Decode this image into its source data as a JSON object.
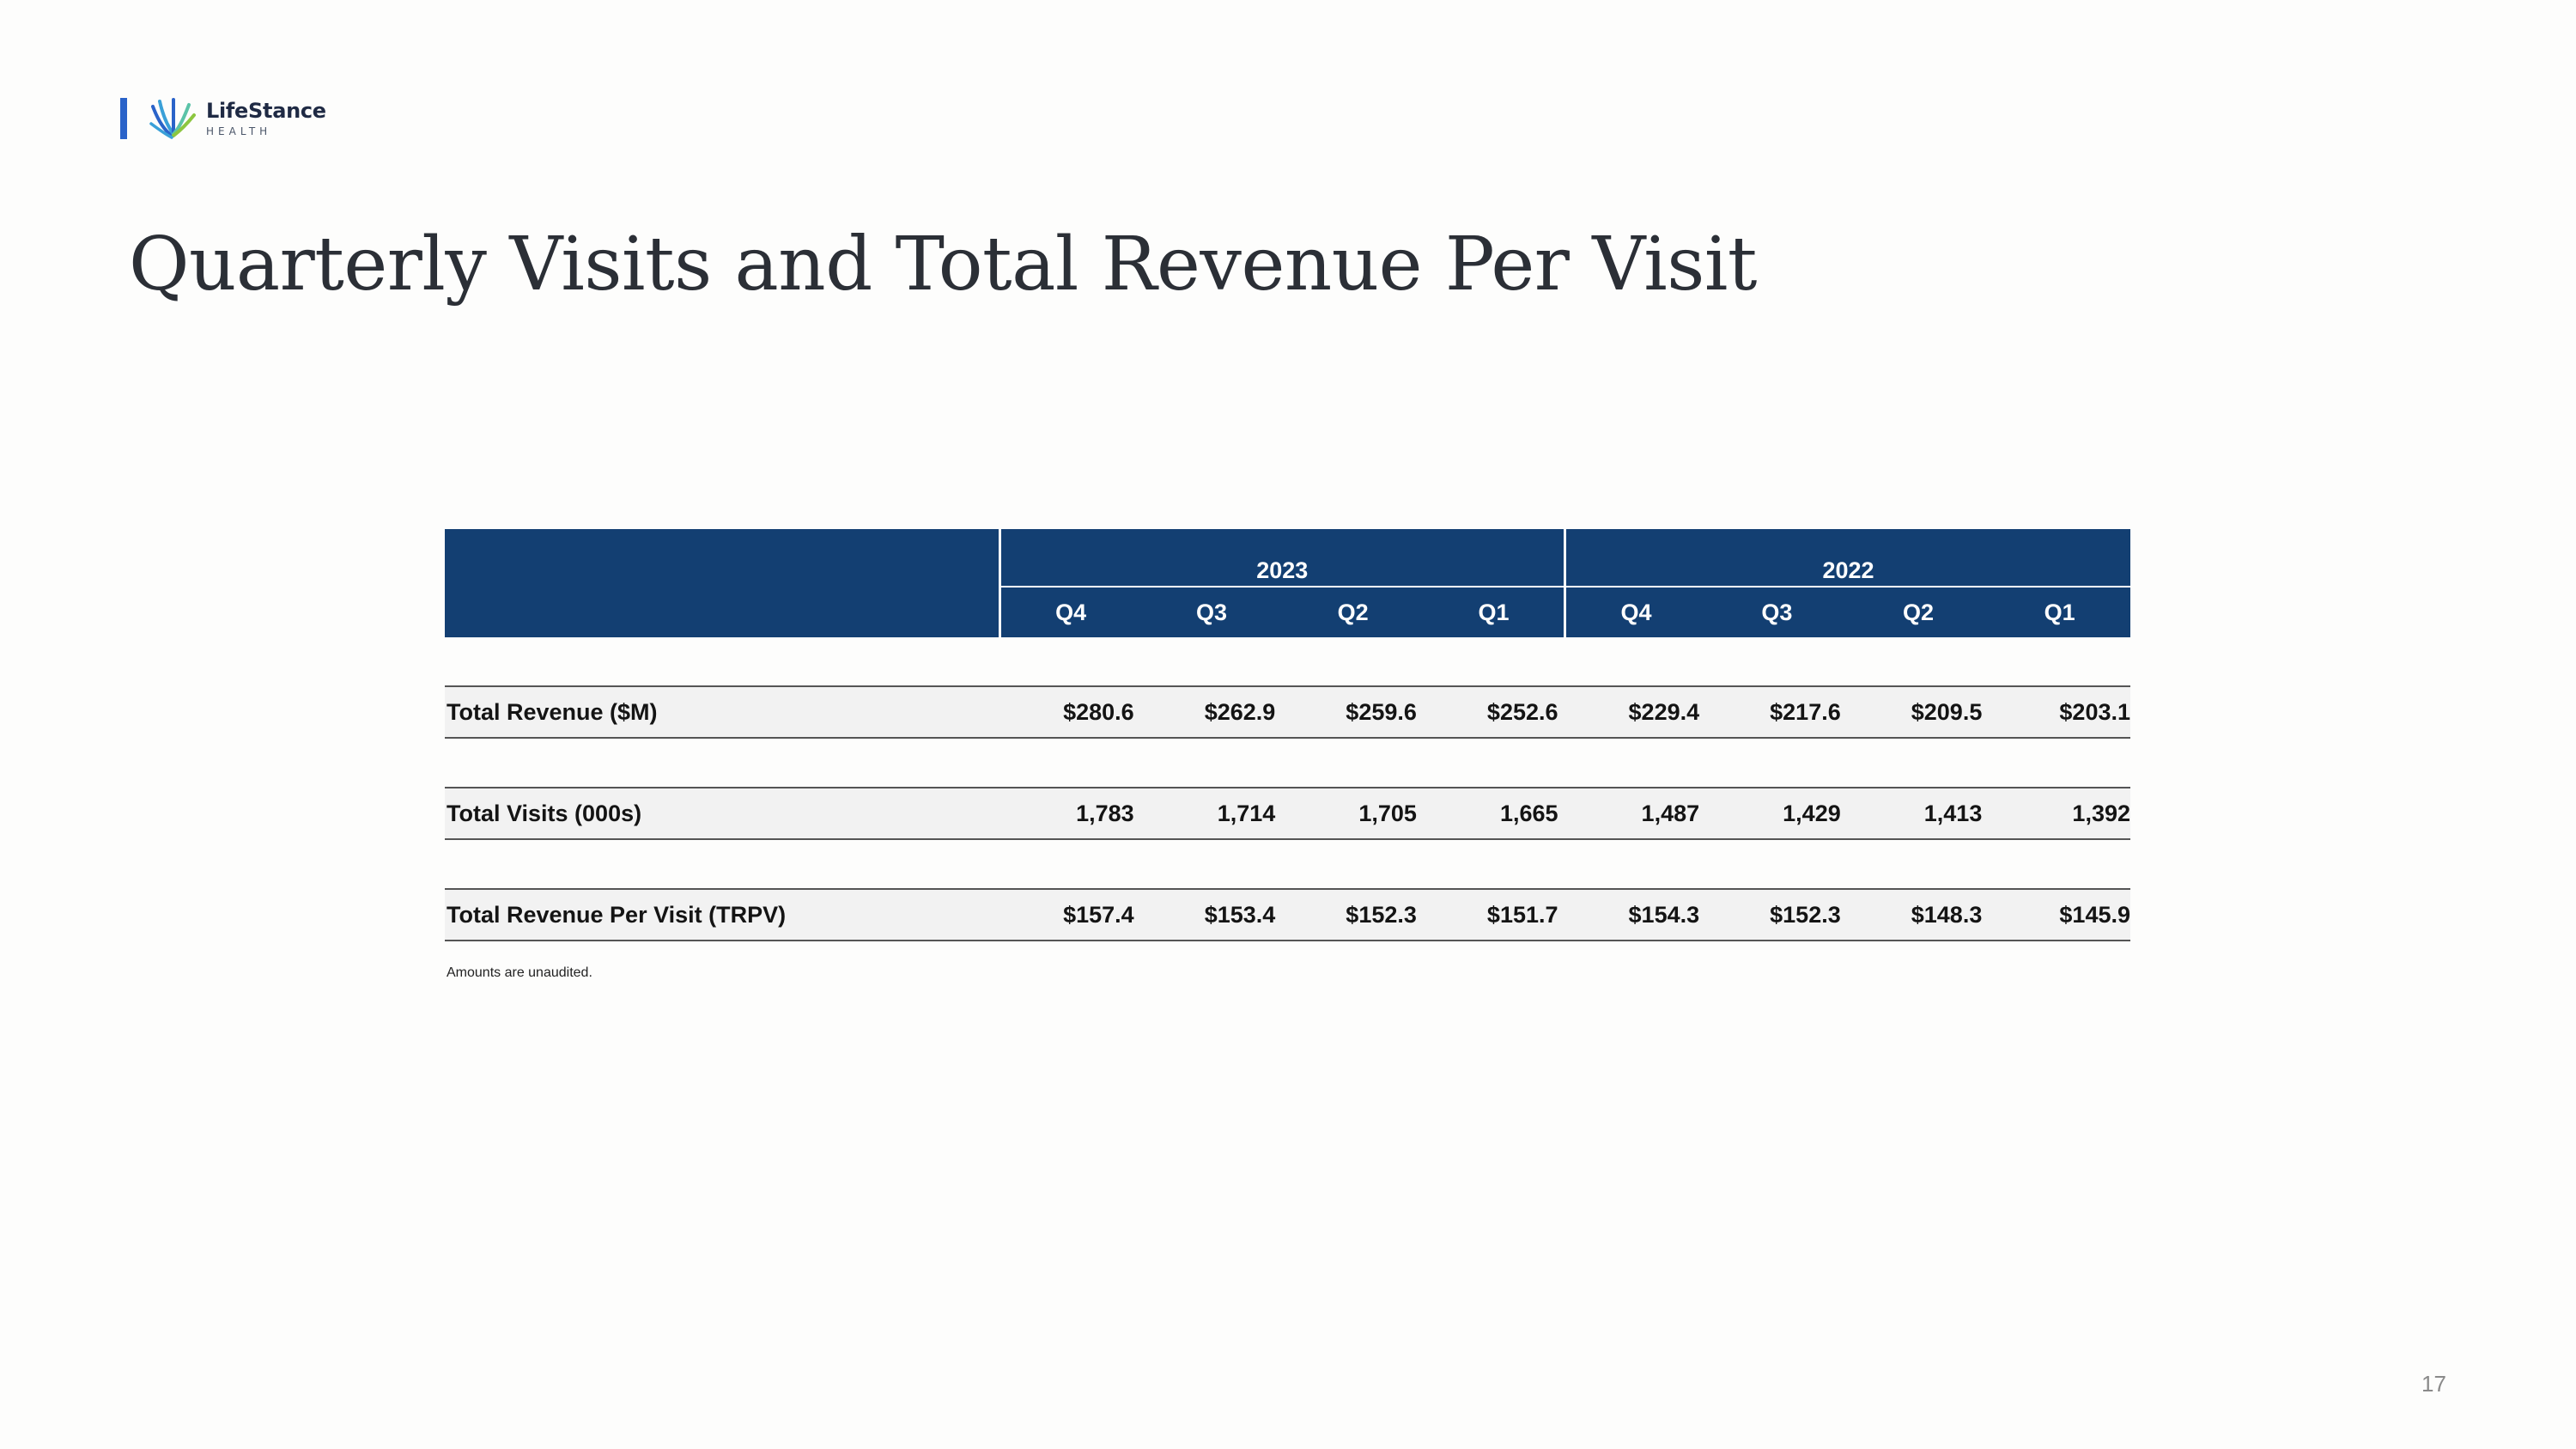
{
  "brand": {
    "name": "LifeStance",
    "sub": "HEALTH",
    "accent_color": "#2a63c9",
    "logo_icon": "lifestance-logo-icon"
  },
  "title": "Quarterly Visits and Total Revenue Per Visit",
  "table": {
    "header_color": "#133f72",
    "years": [
      "2023",
      "2022"
    ],
    "quarters": [
      "Q4",
      "Q3",
      "Q2",
      "Q1",
      "Q4",
      "Q3",
      "Q2",
      "Q1"
    ],
    "rows": [
      {
        "label": "Total Revenue ($M)",
        "values": [
          "$280.6",
          "$262.9",
          "$259.6",
          "$252.6",
          "$229.4",
          "$217.6",
          "$209.5",
          "$203.1"
        ]
      },
      {
        "label": "Total Visits (000s)",
        "values": [
          "1,783",
          "1,714",
          "1,705",
          "1,665",
          "1,487",
          "1,429",
          "1,413",
          "1,392"
        ]
      },
      {
        "label": "Total Revenue Per Visit (TRPV)",
        "values": [
          "$157.4",
          "$153.4",
          "$152.3",
          "$151.7",
          "$154.3",
          "$152.3",
          "$148.3",
          "$145.9"
        ]
      }
    ]
  },
  "footnote": "Amounts are unaudited.",
  "page_number": "17"
}
